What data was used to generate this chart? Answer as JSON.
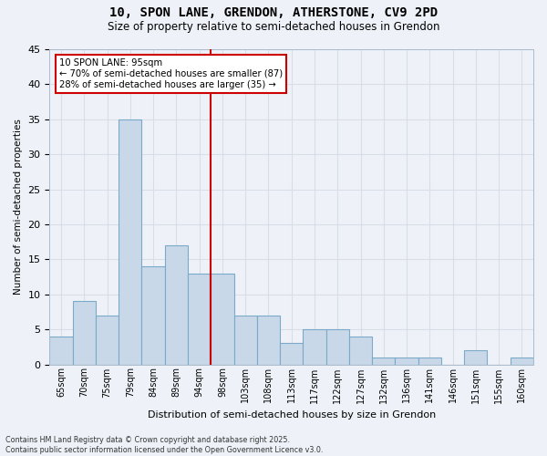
{
  "title": "10, SPON LANE, GRENDON, ATHERSTONE, CV9 2PD",
  "subtitle": "Size of property relative to semi-detached houses in Grendon",
  "xlabel": "Distribution of semi-detached houses by size in Grendon",
  "ylabel": "Number of semi-detached properties",
  "bins": [
    "65sqm",
    "70sqm",
    "75sqm",
    "79sqm",
    "84sqm",
    "89sqm",
    "94sqm",
    "98sqm",
    "103sqm",
    "108sqm",
    "113sqm",
    "117sqm",
    "122sqm",
    "127sqm",
    "132sqm",
    "136sqm",
    "141sqm",
    "146sqm",
    "151sqm",
    "155sqm",
    "160sqm"
  ],
  "values": [
    4,
    9,
    7,
    35,
    14,
    17,
    13,
    13,
    7,
    7,
    3,
    5,
    5,
    4,
    1,
    1,
    1,
    0,
    2,
    0,
    1
  ],
  "bar_color": "#c8d8e8",
  "bar_edge_color": "#7aaac8",
  "annotation_text": "10 SPON LANE: 95sqm\n← 70% of semi-detached houses are smaller (87)\n28% of semi-detached houses are larger (35) →",
  "annotation_box_color": "#ffffff",
  "annotation_box_edge_color": "#cc0000",
  "vline_color": "#cc0000",
  "ylim": [
    0,
    45
  ],
  "yticks": [
    0,
    5,
    10,
    15,
    20,
    25,
    30,
    35,
    40,
    45
  ],
  "grid_color": "#d8dde8",
  "bg_color": "#eef2f8",
  "footer1": "Contains HM Land Registry data © Crown copyright and database right 2025.",
  "footer2": "Contains public sector information licensed under the Open Government Licence v3.0."
}
